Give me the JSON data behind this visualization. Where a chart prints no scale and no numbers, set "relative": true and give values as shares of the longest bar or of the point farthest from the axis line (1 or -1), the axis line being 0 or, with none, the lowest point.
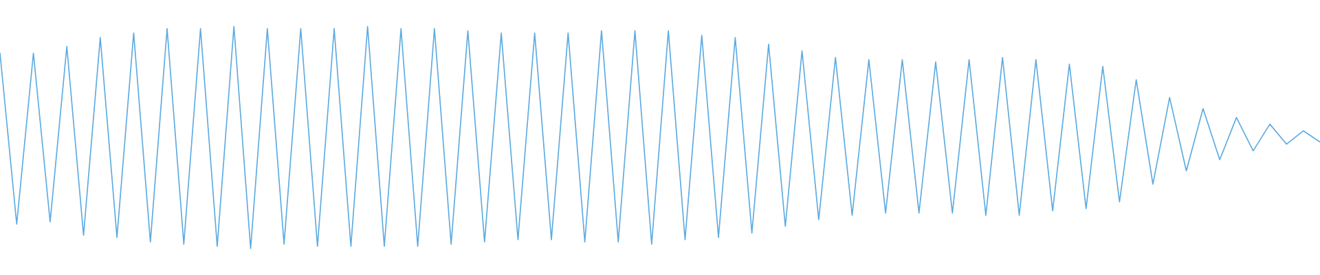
{
  "chart_data": {
    "type": "line",
    "relative": true,
    "categories": [
      null,
      null,
      null,
      null,
      null,
      null,
      null,
      null,
      null,
      null,
      null,
      null,
      null,
      null,
      null,
      null,
      null,
      null,
      null,
      null,
      null,
      null,
      null,
      null,
      null,
      null,
      null,
      null,
      null,
      null,
      null,
      null,
      null,
      null,
      null,
      null,
      null,
      null,
      null,
      null,
      null,
      null,
      null,
      null,
      null,
      null,
      null,
      null,
      null,
      null,
      null,
      null,
      null,
      null,
      null,
      null,
      null,
      null,
      null,
      null,
      null,
      null,
      null,
      null,
      null,
      null,
      null,
      null,
      null,
      null,
      null,
      null,
      null,
      null,
      null,
      null,
      null,
      null,
      null,
      null
    ],
    "series": [
      {
        "color": "#5dabe1",
        "values": [
          0.88,
          0.11,
          0.88,
          0.12,
          0.91,
          0.06,
          0.95,
          0.05,
          0.97,
          0.03,
          0.99,
          0.02,
          0.99,
          0.01,
          1.0,
          0.0,
          0.99,
          0.02,
          0.99,
          0.01,
          0.99,
          0.01,
          1.0,
          0.01,
          0.99,
          0.01,
          0.99,
          0.02,
          0.98,
          0.03,
          0.97,
          0.04,
          0.97,
          0.04,
          0.97,
          0.03,
          0.98,
          0.03,
          0.98,
          0.02,
          0.98,
          0.04,
          0.96,
          0.05,
          0.95,
          0.07,
          0.92,
          0.1,
          0.89,
          0.13,
          0.86,
          0.15,
          0.85,
          0.16,
          0.85,
          0.16,
          0.84,
          0.16,
          0.85,
          0.15,
          0.86,
          0.15,
          0.85,
          0.17,
          0.83,
          0.18,
          0.82,
          0.21,
          0.76,
          0.29,
          0.68,
          0.35,
          0.63,
          0.4,
          0.59,
          0.44,
          0.56,
          0.47,
          0.53,
          0.48
        ]
      }
    ]
  }
}
